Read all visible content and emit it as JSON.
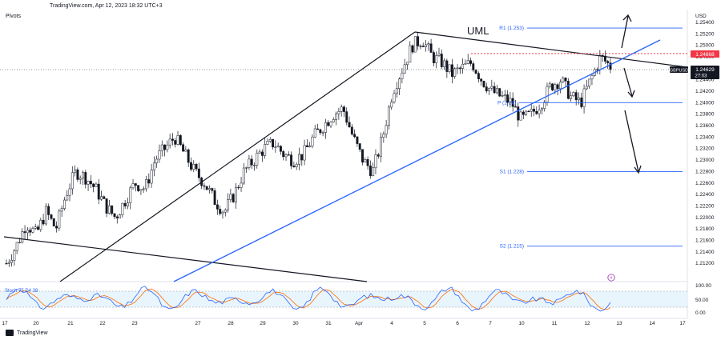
{
  "header": {
    "text": "TradingView.com, Apr 12, 2023 18:32 UTC+3"
  },
  "indicator_label": "Pivots",
  "footer_brand": "TradingView",
  "colors": {
    "up": "#26a69a",
    "candle": "#131722",
    "pivot": "#2962ff",
    "red": "#f23645",
    "trendline": "#2962ff"
  },
  "chart_data": {
    "type": "candlestick",
    "symbol": "GBPUSD",
    "currency": "USD",
    "last_price": "1.24629",
    "countdown": "27:03",
    "resistance_label": "1.24868",
    "annotation": "UML",
    "pivots": [
      {
        "label": "R1 (1.253)",
        "value": 1.253
      },
      {
        "label": "P (1.24)",
        "value": 1.24
      },
      {
        "label": "S1 (1.228)",
        "value": 1.228
      },
      {
        "label": "S2 (1.215)",
        "value": 1.215
      }
    ],
    "yaxis_ticks": [
      "1.25400",
      "1.25200",
      "1.25000",
      "1.24800",
      "1.24600",
      "1.24400",
      "1.24200",
      "1.24000",
      "1.23800",
      "1.23600",
      "1.23400",
      "1.23200",
      "1.23000",
      "1.22800",
      "1.22600",
      "1.22400",
      "1.22200",
      "1.22000",
      "1.21800",
      "1.21600",
      "1.21400",
      "1.21200"
    ],
    "ylim": [
      1.2098,
      1.2558
    ],
    "xaxis_ticks": [
      "17",
      "20",
      "21",
      "22",
      "23",
      "27",
      "28",
      "29",
      "30",
      "31",
      "Apr",
      "4",
      "5",
      "6",
      "7",
      "10",
      "11",
      "12",
      "13",
      "14",
      "17"
    ],
    "stoch": {
      "label": "Stoch 75 D4 38",
      "ticks": [
        "100.00",
        "50.00",
        "0.00"
      ],
      "levels": [
        80,
        20
      ]
    },
    "ohlc_close_path": [
      1.212,
      1.215,
      1.219,
      1.217,
      1.221,
      1.218,
      1.224,
      1.228,
      1.227,
      1.225,
      1.222,
      1.22,
      1.223,
      1.226,
      1.225,
      1.23,
      1.232,
      1.234,
      1.231,
      1.228,
      1.226,
      1.223,
      1.221,
      1.224,
      1.228,
      1.23,
      1.232,
      1.233,
      1.231,
      1.23,
      1.231,
      1.234,
      1.236,
      1.238,
      1.239,
      1.234,
      1.23,
      1.228,
      1.234,
      1.242,
      1.246,
      1.25,
      1.251,
      1.248,
      1.247,
      1.245,
      1.246,
      1.247,
      1.244,
      1.242,
      1.241,
      1.24,
      1.237,
      1.238,
      1.24,
      1.243,
      1.244,
      1.241,
      1.24,
      1.244,
      1.248,
      1.2463
    ]
  }
}
